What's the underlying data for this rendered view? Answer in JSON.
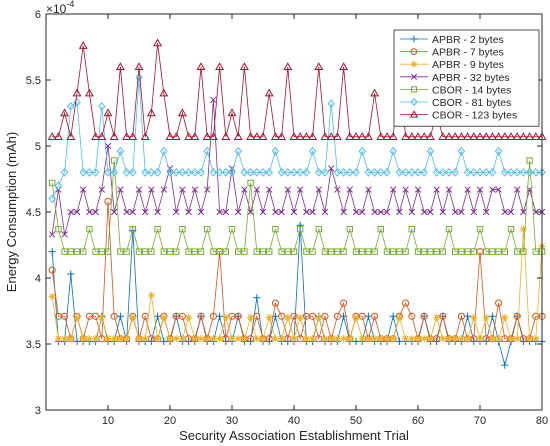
{
  "chart_data": {
    "type": "line",
    "xlabel": "Security Association Establishment Trial",
    "ylabel": "Energy Consumption (mAh)",
    "exponent_label": "×10",
    "exponent_power": "-4",
    "xlim": [
      0,
      80
    ],
    "ylim": [
      3,
      6
    ],
    "xticks": [
      10,
      20,
      30,
      40,
      50,
      60,
      70,
      80
    ],
    "yticks": [
      3,
      3.5,
      4,
      4.5,
      5,
      5.5,
      6
    ],
    "grid": false,
    "legend_position": "top-right",
    "x": [
      1,
      2,
      3,
      4,
      5,
      6,
      7,
      8,
      9,
      10,
      11,
      12,
      13,
      14,
      15,
      16,
      17,
      18,
      19,
      20,
      21,
      22,
      23,
      24,
      25,
      26,
      27,
      28,
      29,
      30,
      31,
      32,
      33,
      34,
      35,
      36,
      37,
      38,
      39,
      40,
      41,
      42,
      43,
      44,
      45,
      46,
      47,
      48,
      49,
      50,
      51,
      52,
      53,
      54,
      55,
      56,
      57,
      58,
      59,
      60,
      61,
      62,
      63,
      64,
      65,
      66,
      67,
      68,
      69,
      70,
      71,
      72,
      73,
      74,
      75,
      76,
      77,
      78,
      79,
      80
    ],
    "series": [
      {
        "name": "APBR - 2 bytes",
        "color": "#0072BD",
        "marker": "plus",
        "values": [
          4.2,
          3.52,
          3.52,
          4.03,
          3.52,
          3.52,
          3.52,
          3.52,
          3.71,
          3.52,
          3.52,
          3.71,
          3.52,
          4.36,
          3.52,
          3.52,
          3.52,
          3.71,
          3.52,
          3.52,
          3.71,
          3.52,
          3.52,
          3.52,
          3.71,
          3.52,
          3.52,
          3.71,
          3.52,
          3.52,
          3.71,
          3.52,
          3.52,
          3.85,
          3.52,
          3.52,
          3.71,
          3.52,
          3.52,
          3.52,
          4.4,
          3.52,
          3.52,
          3.71,
          3.52,
          3.52,
          3.52,
          3.71,
          3.52,
          3.52,
          3.52,
          3.71,
          3.52,
          3.52,
          3.52,
          3.71,
          3.52,
          3.52,
          3.52,
          3.52,
          3.71,
          3.52,
          3.52,
          3.71,
          3.52,
          3.52,
          3.52,
          3.71,
          3.52,
          3.52,
          3.52,
          3.71,
          3.52,
          3.34,
          3.52,
          3.71,
          3.52,
          3.52,
          3.52,
          3.52
        ]
      },
      {
        "name": "APBR - 7 bytes",
        "color": "#D95319",
        "marker": "circle",
        "values": [
          4.06,
          3.71,
          3.71,
          3.54,
          3.71,
          3.54,
          3.71,
          3.71,
          3.54,
          4.58,
          3.71,
          3.54,
          3.54,
          3.71,
          3.54,
          3.71,
          3.54,
          3.54,
          3.71,
          3.54,
          3.71,
          3.71,
          3.54,
          3.54,
          3.71,
          3.54,
          3.71,
          4.2,
          3.54,
          3.71,
          3.71,
          3.54,
          3.54,
          3.71,
          3.54,
          3.54,
          3.81,
          3.71,
          3.54,
          3.71,
          3.54,
          3.71,
          3.71,
          3.54,
          3.71,
          3.54,
          3.71,
          3.81,
          3.54,
          3.71,
          3.71,
          3.54,
          3.71,
          3.54,
          3.54,
          3.54,
          3.71,
          3.81,
          3.71,
          3.54,
          3.71,
          3.54,
          3.54,
          3.71,
          3.54,
          3.54,
          3.71,
          3.54,
          3.54,
          4.2,
          3.54,
          3.54,
          3.81,
          3.54,
          3.54,
          3.71,
          3.54,
          3.54,
          3.71,
          3.71
        ]
      },
      {
        "name": "APBR - 9 bytes",
        "color": "#EDB120",
        "marker": "asterisk",
        "values": [
          3.86,
          3.54,
          3.54,
          3.54,
          3.7,
          3.54,
          3.54,
          3.54,
          3.7,
          3.54,
          3.54,
          3.54,
          3.54,
          3.7,
          3.54,
          3.54,
          3.87,
          3.54,
          3.7,
          3.54,
          3.54,
          3.54,
          3.7,
          3.54,
          3.54,
          3.54,
          3.54,
          3.54,
          3.7,
          3.54,
          3.54,
          3.54,
          3.7,
          3.54,
          3.54,
          3.7,
          3.54,
          3.54,
          3.7,
          3.54,
          3.7,
          3.54,
          3.54,
          3.7,
          3.54,
          3.54,
          3.54,
          3.54,
          3.54,
          3.7,
          3.54,
          3.54,
          3.54,
          3.54,
          3.54,
          3.54,
          3.7,
          3.54,
          3.54,
          3.54,
          3.54,
          3.54,
          3.7,
          3.54,
          3.54,
          3.54,
          3.54,
          3.54,
          3.7,
          3.54,
          3.7,
          3.54,
          3.54,
          3.7,
          3.54,
          3.54,
          4.37,
          3.54,
          3.54,
          4.24
        ]
      },
      {
        "name": "APBR - 32 bytes",
        "color": "#7E2F8E",
        "marker": "x",
        "values": [
          4.33,
          4.67,
          4.33,
          4.5,
          4.5,
          4.67,
          4.5,
          4.5,
          4.67,
          5.0,
          4.5,
          4.67,
          4.5,
          4.5,
          4.67,
          4.5,
          4.67,
          4.5,
          4.67,
          4.83,
          4.5,
          4.67,
          4.5,
          4.67,
          4.5,
          4.67,
          5.35,
          4.5,
          4.5,
          4.83,
          4.5,
          4.67,
          4.5,
          4.67,
          4.5,
          4.67,
          4.5,
          4.5,
          4.67,
          4.5,
          4.67,
          4.5,
          4.5,
          4.67,
          4.5,
          4.83,
          4.67,
          4.5,
          4.67,
          4.5,
          4.5,
          4.67,
          4.5,
          4.5,
          4.5,
          4.67,
          4.5,
          4.67,
          4.5,
          4.67,
          4.5,
          4.5,
          4.67,
          4.5,
          4.67,
          4.5,
          4.5,
          4.67,
          4.5,
          4.67,
          4.5,
          4.67,
          4.67,
          4.5,
          4.5,
          4.67,
          4.5,
          4.67,
          4.5,
          4.5
        ]
      },
      {
        "name": "CBOR - 14 bytes",
        "color": "#77AC30",
        "marker": "square",
        "values": [
          4.72,
          4.37,
          4.2,
          4.2,
          4.2,
          4.2,
          4.37,
          4.2,
          4.2,
          4.2,
          4.89,
          4.2,
          4.2,
          4.37,
          4.2,
          4.2,
          4.2,
          4.37,
          4.2,
          4.2,
          4.2,
          4.37,
          4.2,
          4.2,
          4.2,
          4.37,
          4.2,
          4.2,
          4.2,
          4.37,
          4.2,
          4.2,
          4.72,
          4.2,
          4.2,
          4.2,
          4.37,
          4.2,
          4.2,
          4.2,
          4.37,
          4.2,
          4.2,
          4.37,
          4.2,
          4.2,
          4.2,
          4.2,
          4.37,
          4.2,
          4.2,
          4.2,
          4.2,
          4.37,
          4.2,
          4.2,
          4.2,
          4.2,
          4.37,
          4.2,
          4.2,
          4.2,
          4.2,
          4.2,
          4.37,
          4.2,
          4.2,
          4.2,
          4.2,
          4.37,
          4.2,
          4.2,
          4.2,
          4.2,
          4.37,
          4.2,
          4.2,
          4.89,
          4.2,
          4.2
        ]
      },
      {
        "name": "CBOR - 81 bytes",
        "color": "#4DBEEE",
        "marker": "diamond",
        "values": [
          4.6,
          4.7,
          4.8,
          5.3,
          5.33,
          4.8,
          4.8,
          4.8,
          5.3,
          4.8,
          4.8,
          4.96,
          4.8,
          4.8,
          5.52,
          4.8,
          4.8,
          4.8,
          4.96,
          4.8,
          4.8,
          4.8,
          4.8,
          4.8,
          4.8,
          4.96,
          4.8,
          4.8,
          4.8,
          4.8,
          4.96,
          4.8,
          4.8,
          4.8,
          4.8,
          4.8,
          4.96,
          4.8,
          4.8,
          4.8,
          4.8,
          4.8,
          4.96,
          4.8,
          4.8,
          5.32,
          4.8,
          4.8,
          4.8,
          4.8,
          4.96,
          4.8,
          4.8,
          4.8,
          4.8,
          4.96,
          4.8,
          4.8,
          4.8,
          4.8,
          4.8,
          4.96,
          4.8,
          4.8,
          4.8,
          4.8,
          4.96,
          4.8,
          4.8,
          4.8,
          4.8,
          4.8,
          4.96,
          4.8,
          4.8,
          4.8,
          4.8,
          4.8,
          4.8,
          4.8
        ]
      },
      {
        "name": "CBOR - 123 bytes",
        "color": "#A2142F",
        "marker": "triangle",
        "values": [
          5.07,
          5.07,
          5.25,
          5.07,
          5.4,
          5.76,
          5.4,
          5.07,
          5.07,
          5.25,
          5.07,
          5.6,
          5.07,
          5.07,
          5.6,
          5.07,
          5.25,
          5.78,
          5.4,
          5.07,
          5.07,
          5.25,
          5.07,
          5.07,
          5.6,
          5.07,
          5.07,
          5.6,
          5.07,
          5.25,
          5.07,
          5.6,
          5.07,
          5.07,
          5.07,
          5.4,
          5.07,
          5.07,
          5.6,
          5.07,
          5.07,
          5.07,
          5.07,
          5.6,
          5.07,
          5.07,
          5.07,
          5.6,
          5.07,
          5.07,
          5.07,
          5.07,
          5.4,
          5.07,
          5.07,
          5.07,
          5.6,
          5.07,
          5.07,
          5.07,
          5.07,
          5.07,
          5.25,
          5.07,
          5.07,
          5.07,
          5.07,
          5.07,
          5.07,
          5.07,
          5.07,
          5.07,
          5.07,
          5.07,
          5.07,
          5.07,
          5.07,
          5.07,
          5.07,
          5.07
        ]
      }
    ]
  }
}
